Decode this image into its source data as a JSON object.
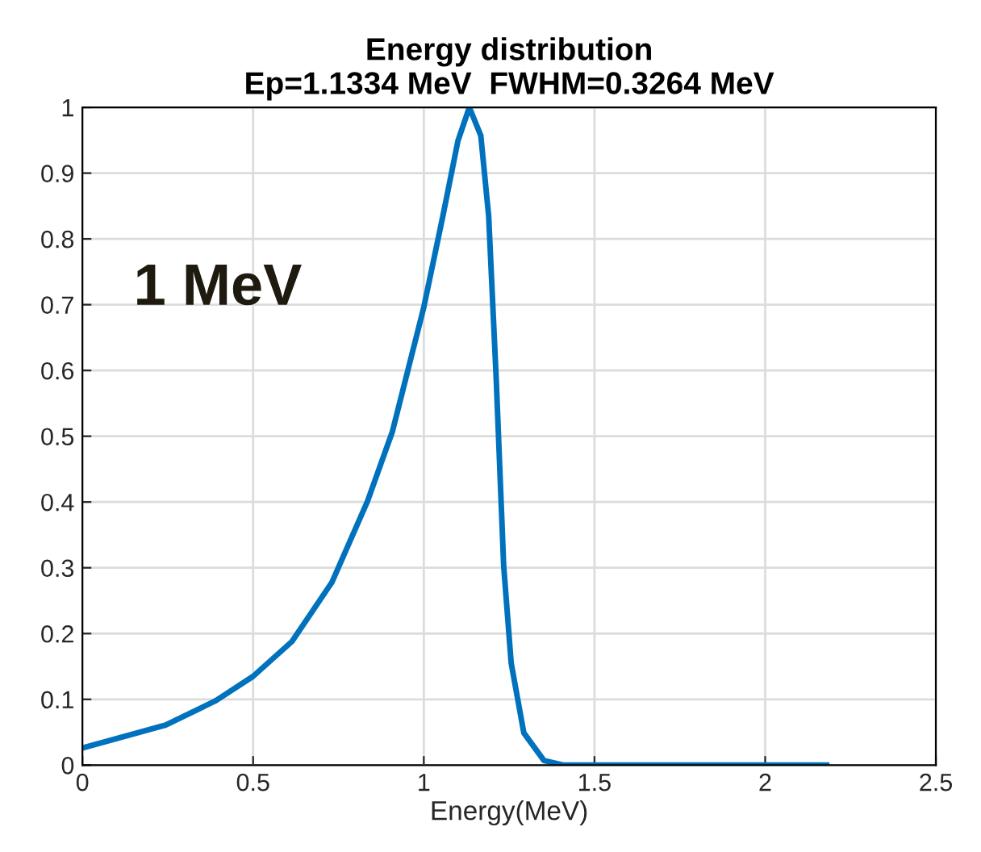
{
  "chart_data": {
    "type": "line",
    "title": "Energy distribution\nEp=1.1334 MeV  FWHM=0.3264 MeV",
    "xlabel": "Energy(MeV)",
    "x": [
      0,
      0.244,
      0.391,
      0.5,
      0.614,
      0.731,
      0.835,
      0.908,
      1.0,
      1.056,
      1.1,
      1.1334,
      1.167,
      1.19,
      1.212,
      1.234,
      1.256,
      1.293,
      1.352,
      1.41,
      1.6,
      1.9,
      2.18
    ],
    "series": [
      {
        "color": "#0072bd",
        "values": [
          0.026,
          0.061,
          0.098,
          0.135,
          0.188,
          0.278,
          0.401,
          0.507,
          0.696,
          0.835,
          0.949,
          1.0,
          0.957,
          0.835,
          0.589,
          0.303,
          0.155,
          0.049,
          0.007,
          0,
          0,
          0,
          0
        ]
      }
    ],
    "xlim": [
      0,
      2.5
    ],
    "xticks": [
      0,
      0.5,
      1,
      1.5,
      2,
      2.5
    ],
    "ylim": [
      0,
      1
    ],
    "yticks": [
      0,
      0.1,
      0.2,
      0.3,
      0.4,
      0.5,
      0.6,
      0.7,
      0.8,
      0.9,
      1
    ],
    "grid": true,
    "annotations": [
      {
        "text": "1 MeV"
      }
    ],
    "line_style": "solid",
    "marker": "none"
  }
}
